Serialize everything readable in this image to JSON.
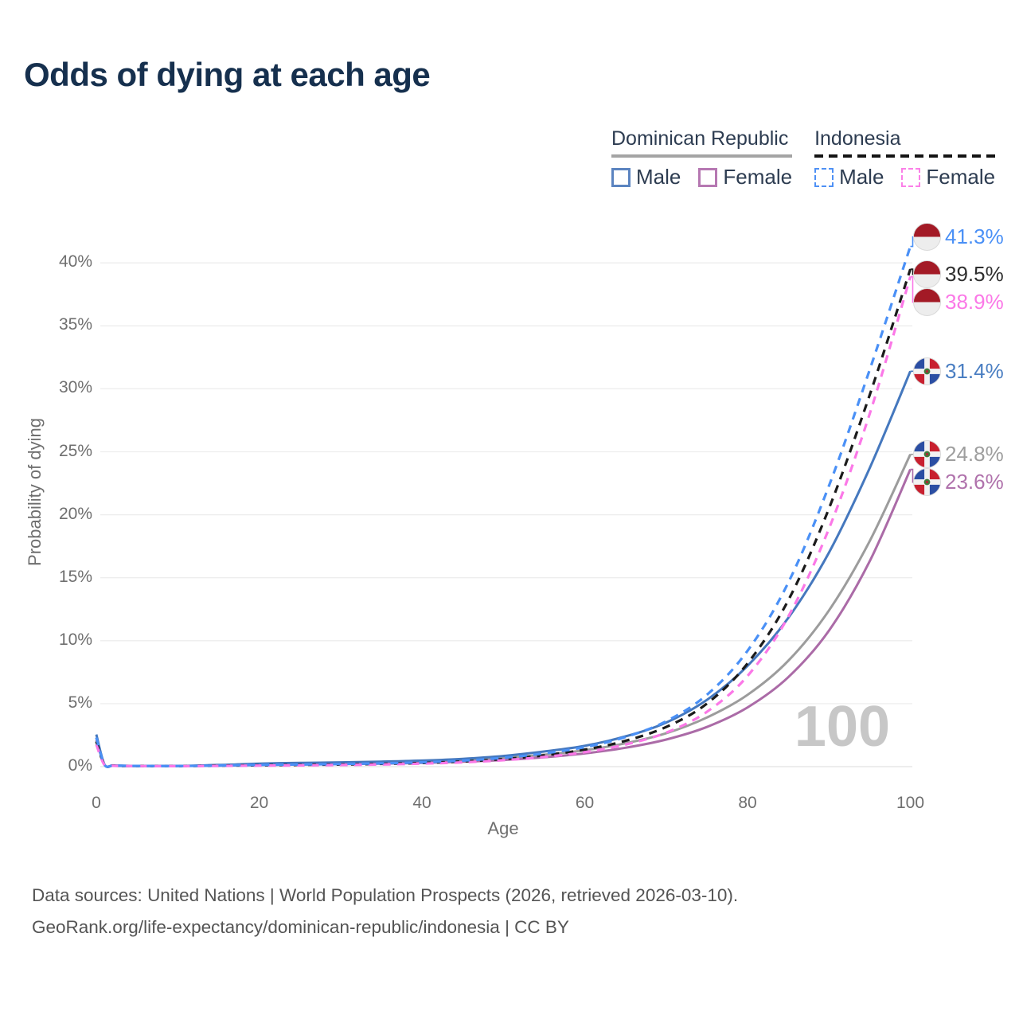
{
  "title": "Odds of dying at each age",
  "legend": {
    "groups": [
      {
        "label": "Dominican Republic",
        "line_style": "solid",
        "underline_color": "#a4a4a4",
        "items": [
          {
            "label": "Male",
            "color": "#5b84c0"
          },
          {
            "label": "Female",
            "color": "#b678b2"
          }
        ]
      },
      {
        "label": "Indonesia",
        "line_style": "dashed",
        "underline_color": "#141414",
        "items": [
          {
            "label": "Male",
            "color": "#4e90f5"
          },
          {
            "label": "Female",
            "color": "#fb80e8"
          }
        ]
      }
    ]
  },
  "chart_data": {
    "type": "line",
    "title": "Odds of dying at each age",
    "xlabel": "Age",
    "ylabel": "Probability of dying",
    "watermark": "100",
    "xlim": [
      0,
      100
    ],
    "ylim": [
      0,
      43
    ],
    "grid": true,
    "legend_position": "top-right",
    "x_ticks": [
      0,
      20,
      40,
      60,
      80,
      100
    ],
    "y_ticks": [
      0,
      5,
      10,
      15,
      20,
      25,
      30,
      35,
      40
    ],
    "y_tick_suffix": "%",
    "x": [
      0,
      1,
      2,
      3,
      5,
      10,
      15,
      20,
      25,
      30,
      35,
      40,
      45,
      50,
      55,
      60,
      65,
      70,
      75,
      80,
      85,
      90,
      95,
      100
    ],
    "series": [
      {
        "name": "Indonesia Male",
        "country": "Indonesia",
        "sex": "male",
        "dashed": true,
        "color": "#4a90f6",
        "label_color": "#4a90f6",
        "end_label": "41.3%",
        "end_value": 41.3,
        "values": [
          2.3,
          0.16,
          0.09,
          0.07,
          0.06,
          0.05,
          0.09,
          0.14,
          0.17,
          0.21,
          0.26,
          0.34,
          0.48,
          0.7,
          1.05,
          1.55,
          2.35,
          3.6,
          5.7,
          9.2,
          14.6,
          22.3,
          31.5,
          41.3
        ]
      },
      {
        "name": "Indonesia Both sexes",
        "country": "Indonesia",
        "sex": "both",
        "dashed": true,
        "color": "#1b1b1b",
        "label_color": "#2e2e2e",
        "end_label": "39.5%",
        "end_value": 39.5,
        "values": [
          2.0,
          0.14,
          0.08,
          0.06,
          0.05,
          0.045,
          0.08,
          0.11,
          0.14,
          0.17,
          0.22,
          0.29,
          0.41,
          0.6,
          0.9,
          1.35,
          2.05,
          3.15,
          5.0,
          8.2,
          13.2,
          20.5,
          29.5,
          39.5
        ]
      },
      {
        "name": "Indonesia Female",
        "country": "Indonesia",
        "sex": "female",
        "dashed": true,
        "color": "#fb78e7",
        "label_color": "#fb78e7",
        "end_label": "38.9%",
        "end_value": 38.9,
        "values": [
          1.75,
          0.13,
          0.07,
          0.055,
          0.045,
          0.04,
          0.06,
          0.08,
          0.1,
          0.13,
          0.17,
          0.24,
          0.34,
          0.51,
          0.77,
          1.15,
          1.75,
          2.7,
          4.35,
          7.2,
          11.9,
          18.9,
          28.0,
          38.9
        ]
      },
      {
        "name": "Dominican Republic Male",
        "country": "Dominican Republic",
        "sex": "male",
        "dashed": false,
        "color": "#4578be",
        "label_color": "#4a7ec2",
        "end_label": "31.4%",
        "end_value": 31.4,
        "values": [
          2.55,
          0.18,
          0.1,
          0.08,
          0.055,
          0.06,
          0.13,
          0.24,
          0.3,
          0.34,
          0.4,
          0.48,
          0.62,
          0.85,
          1.2,
          1.65,
          2.4,
          3.5,
          5.3,
          8.0,
          11.8,
          17.0,
          23.7,
          31.4
        ]
      },
      {
        "name": "Dominican Republic Both sexes",
        "country": "Dominican Republic",
        "sex": "both",
        "dashed": false,
        "color": "#9c9c9c",
        "label_color": "#9e9e9e",
        "end_label": "24.8%",
        "end_value": 24.8,
        "values": [
          2.3,
          0.16,
          0.09,
          0.07,
          0.05,
          0.055,
          0.11,
          0.19,
          0.24,
          0.28,
          0.32,
          0.39,
          0.5,
          0.68,
          0.95,
          1.3,
          1.85,
          2.65,
          3.9,
          5.7,
          8.4,
          12.4,
          17.9,
          24.8
        ]
      },
      {
        "name": "Dominican Republic Female",
        "country": "Dominican Republic",
        "sex": "female",
        "dashed": false,
        "color": "#ab6ba7",
        "label_color": "#b072ac",
        "end_label": "23.6%",
        "end_value": 23.6,
        "values": [
          2.1,
          0.15,
          0.08,
          0.06,
          0.045,
          0.05,
          0.08,
          0.13,
          0.17,
          0.2,
          0.24,
          0.3,
          0.39,
          0.53,
          0.74,
          1.05,
          1.5,
          2.15,
          3.15,
          4.7,
          7.1,
          10.8,
          16.3,
          23.6
        ]
      }
    ]
  },
  "footer": {
    "line1": "Data sources: United Nations | World Population Prospects (2026, retrieved 2026-03-10).",
    "line2": "GeoRank.org/life-expectancy/dominican-republic/indonesia | CC BY"
  }
}
